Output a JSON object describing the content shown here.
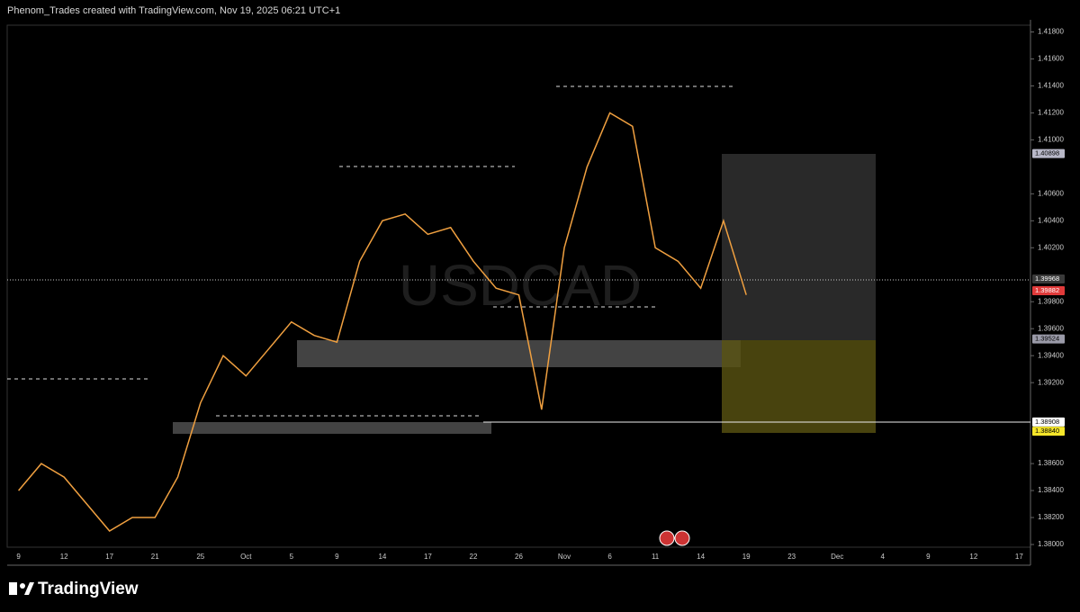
{
  "header": "Phenom_Trades created with TradingView.com, Nov 19, 2025 06:21 UTC+1",
  "brand": "TradingView",
  "chart_data": {
    "type": "line",
    "watermark": "USDCAD",
    "color": "#f0a040",
    "categories": [
      "9",
      null,
      "12",
      null,
      "17",
      null,
      "21",
      null,
      "25",
      null,
      "Oct",
      null,
      "5",
      null,
      "9",
      null,
      "14",
      null,
      "17",
      null,
      "22",
      null,
      "26",
      null,
      "Nov",
      null,
      "6",
      null,
      "11",
      null,
      "14",
      null,
      "19",
      null,
      "23",
      null,
      "Dec",
      null,
      "4",
      null,
      "9",
      null,
      "12",
      null,
      "17"
    ],
    "values": [
      1.384,
      1.386,
      1.385,
      1.383,
      1.381,
      1.382,
      1.382,
      1.385,
      1.3905,
      1.394,
      1.3925,
      1.3945,
      1.3965,
      1.3955,
      1.395,
      1.401,
      1.404,
      1.4045,
      1.403,
      1.4035,
      1.401,
      1.399,
      1.3985,
      1.39,
      1.402,
      1.408,
      1.412,
      1.411,
      1.402,
      1.401,
      1.399,
      1.404,
      1.3985,
      null,
      null,
      null,
      null,
      null,
      null,
      null,
      null,
      null,
      null,
      null,
      null
    ],
    "ylim": [
      1.3798,
      1.4185
    ],
    "yticks": [
      {
        "value": 1.38,
        "label": "1.38000"
      },
      {
        "value": 1.382,
        "label": "1.38200"
      },
      {
        "value": 1.384,
        "label": "1.38400"
      },
      {
        "value": 1.386,
        "label": "1.38600"
      },
      {
        "value": 1.392,
        "label": "1.39200"
      },
      {
        "value": 1.394,
        "label": "1.39400"
      },
      {
        "value": 1.396,
        "label": "1.39600"
      },
      {
        "value": 1.398,
        "label": "1.39800"
      },
      {
        "value": 1.402,
        "label": "1.40200"
      },
      {
        "value": 1.404,
        "label": "1.40400"
      },
      {
        "value": 1.406,
        "label": "1.40600"
      },
      {
        "value": 1.41,
        "label": "1.41000"
      },
      {
        "value": 1.412,
        "label": "1.41200"
      },
      {
        "value": 1.414,
        "label": "1.41400"
      },
      {
        "value": 1.416,
        "label": "1.41600"
      },
      {
        "value": 1.418,
        "label": "1.41800"
      }
    ],
    "price_tags": [
      1.40898,
      1.39968,
      1.39882,
      1.39524,
      1.38908,
      {
        "value": 1.3884,
        "label": "1.38840"
      }
    ],
    "price_tag_colors": [
      "#b8b8c8",
      "#3a3a3a",
      "#e03a3a",
      "#9a9aa8",
      "#ffffff",
      "#f5e62a"
    ]
  }
}
